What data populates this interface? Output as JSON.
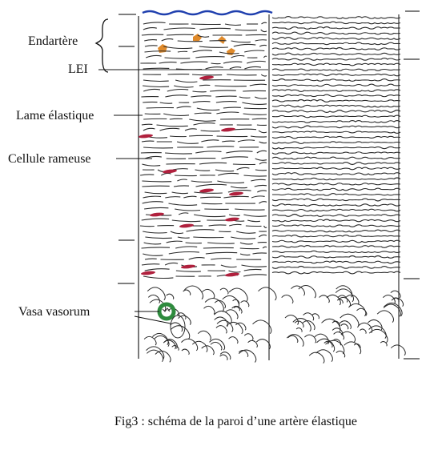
{
  "labels": {
    "endartere": "Endartère",
    "lei": "LEI",
    "lame_elastique": "Lame élastique",
    "cellule_rameuse": "Cellule rameuse",
    "vasa_vasorum": "Vasa vasorum"
  },
  "caption": "Fig3 : schéma de la paroi d’une artère élastique",
  "colors": {
    "endothelium": "#1f3fae",
    "ink": "#2a2a2a",
    "cell": "#b0203d",
    "endothelial_cells": "#e08a2a",
    "vessel": "#2e8b3e"
  }
}
